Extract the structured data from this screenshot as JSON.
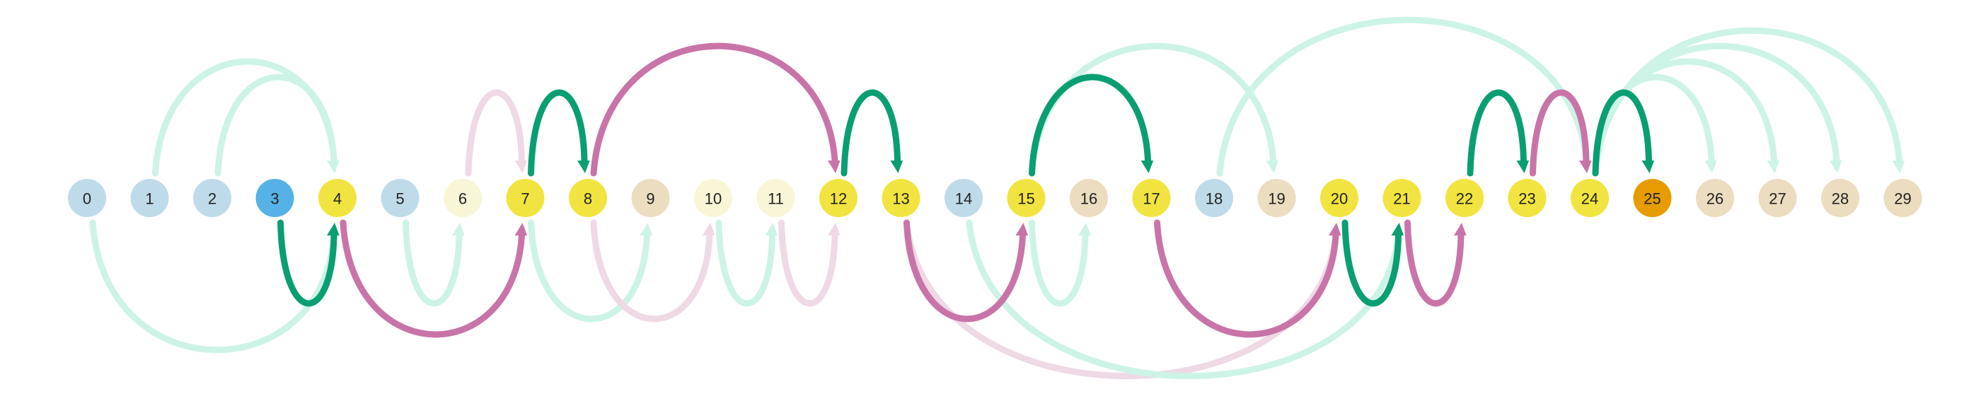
{
  "colors": {
    "green": "#0a9e73",
    "green_light": "#cdf3e7",
    "pink": "#c974a8",
    "pink_light": "#eed9e5"
  },
  "nodes": [
    {
      "label": "0",
      "color": "#bfdbea"
    },
    {
      "label": "1",
      "color": "#bfdbea"
    },
    {
      "label": "2",
      "color": "#bfdbea"
    },
    {
      "label": "3",
      "color": "#56b2e6"
    },
    {
      "label": "4",
      "color": "#f1e440"
    },
    {
      "label": "5",
      "color": "#bfdbea"
    },
    {
      "label": "6",
      "color": "#f9f6d8"
    },
    {
      "label": "7",
      "color": "#f1e440"
    },
    {
      "label": "8",
      "color": "#f1e440"
    },
    {
      "label": "9",
      "color": "#ecdcc0"
    },
    {
      "label": "10",
      "color": "#f9f6d8"
    },
    {
      "label": "11",
      "color": "#f9f6d8"
    },
    {
      "label": "12",
      "color": "#f1e440"
    },
    {
      "label": "13",
      "color": "#f1e440"
    },
    {
      "label": "14",
      "color": "#bfdbea"
    },
    {
      "label": "15",
      "color": "#f1e440"
    },
    {
      "label": "16",
      "color": "#ecdcc0"
    },
    {
      "label": "17",
      "color": "#f1e440"
    },
    {
      "label": "18",
      "color": "#bfdbea"
    },
    {
      "label": "19",
      "color": "#ecdcc0"
    },
    {
      "label": "20",
      "color": "#f1e440"
    },
    {
      "label": "21",
      "color": "#f1e440"
    },
    {
      "label": "22",
      "color": "#f1e440"
    },
    {
      "label": "23",
      "color": "#f1e440"
    },
    {
      "label": "24",
      "color": "#f1e440"
    },
    {
      "label": "25",
      "color": "#e69b00"
    },
    {
      "label": "26",
      "color": "#ecdcc0"
    },
    {
      "label": "27",
      "color": "#ecdcc0"
    },
    {
      "label": "28",
      "color": "#ecdcc0"
    },
    {
      "label": "29",
      "color": "#ecdcc0"
    }
  ],
  "edges": [
    {
      "from": 0,
      "to": 4,
      "side": "below",
      "style": "green_light"
    },
    {
      "from": 1,
      "to": 4,
      "side": "above",
      "style": "green_light"
    },
    {
      "from": 2,
      "to": 4,
      "side": "above",
      "style": "green_light"
    },
    {
      "from": 3,
      "to": 4,
      "side": "below",
      "style": "green"
    },
    {
      "from": 4,
      "to": 7,
      "side": "below",
      "style": "pink"
    },
    {
      "from": 5,
      "to": 6,
      "side": "below",
      "style": "green_light"
    },
    {
      "from": 6,
      "to": 7,
      "side": "above",
      "style": "pink_light"
    },
    {
      "from": 7,
      "to": 8,
      "side": "above",
      "style": "green"
    },
    {
      "from": 7,
      "to": 9,
      "side": "below",
      "style": "green_light"
    },
    {
      "from": 8,
      "to": 12,
      "side": "above",
      "style": "pink"
    },
    {
      "from": 8,
      "to": 10,
      "side": "below",
      "style": "pink_light"
    },
    {
      "from": 10,
      "to": 11,
      "side": "below",
      "style": "green_light"
    },
    {
      "from": 11,
      "to": 12,
      "side": "below",
      "style": "pink_light"
    },
    {
      "from": 12,
      "to": 13,
      "side": "above",
      "style": "green"
    },
    {
      "from": 13,
      "to": 15,
      "side": "below",
      "style": "pink"
    },
    {
      "from": 13,
      "to": 20,
      "side": "below",
      "style": "pink_light"
    },
    {
      "from": 14,
      "to": 21,
      "side": "below",
      "style": "green_light"
    },
    {
      "from": 15,
      "to": 17,
      "side": "above",
      "style": "green"
    },
    {
      "from": 15,
      "to": 16,
      "side": "below",
      "style": "green_light"
    },
    {
      "from": 15,
      "to": 19,
      "side": "above",
      "style": "green_light"
    },
    {
      "from": 17,
      "to": 20,
      "side": "below",
      "style": "pink"
    },
    {
      "from": 18,
      "to": 24,
      "side": "above",
      "style": "green_light"
    },
    {
      "from": 20,
      "to": 21,
      "side": "below",
      "style": "green"
    },
    {
      "from": 21,
      "to": 22,
      "side": "below",
      "style": "pink"
    },
    {
      "from": 22,
      "to": 23,
      "side": "above",
      "style": "green"
    },
    {
      "from": 23,
      "to": 24,
      "side": "above",
      "style": "pink"
    },
    {
      "from": 24,
      "to": 25,
      "side": "above",
      "style": "green"
    },
    {
      "from": 24,
      "to": 26,
      "side": "above",
      "style": "green_light"
    },
    {
      "from": 24,
      "to": 27,
      "side": "above",
      "style": "green_light"
    },
    {
      "from": 24,
      "to": 28,
      "side": "above",
      "style": "green_light"
    },
    {
      "from": 24,
      "to": 29,
      "side": "above",
      "style": "green_light"
    }
  ]
}
